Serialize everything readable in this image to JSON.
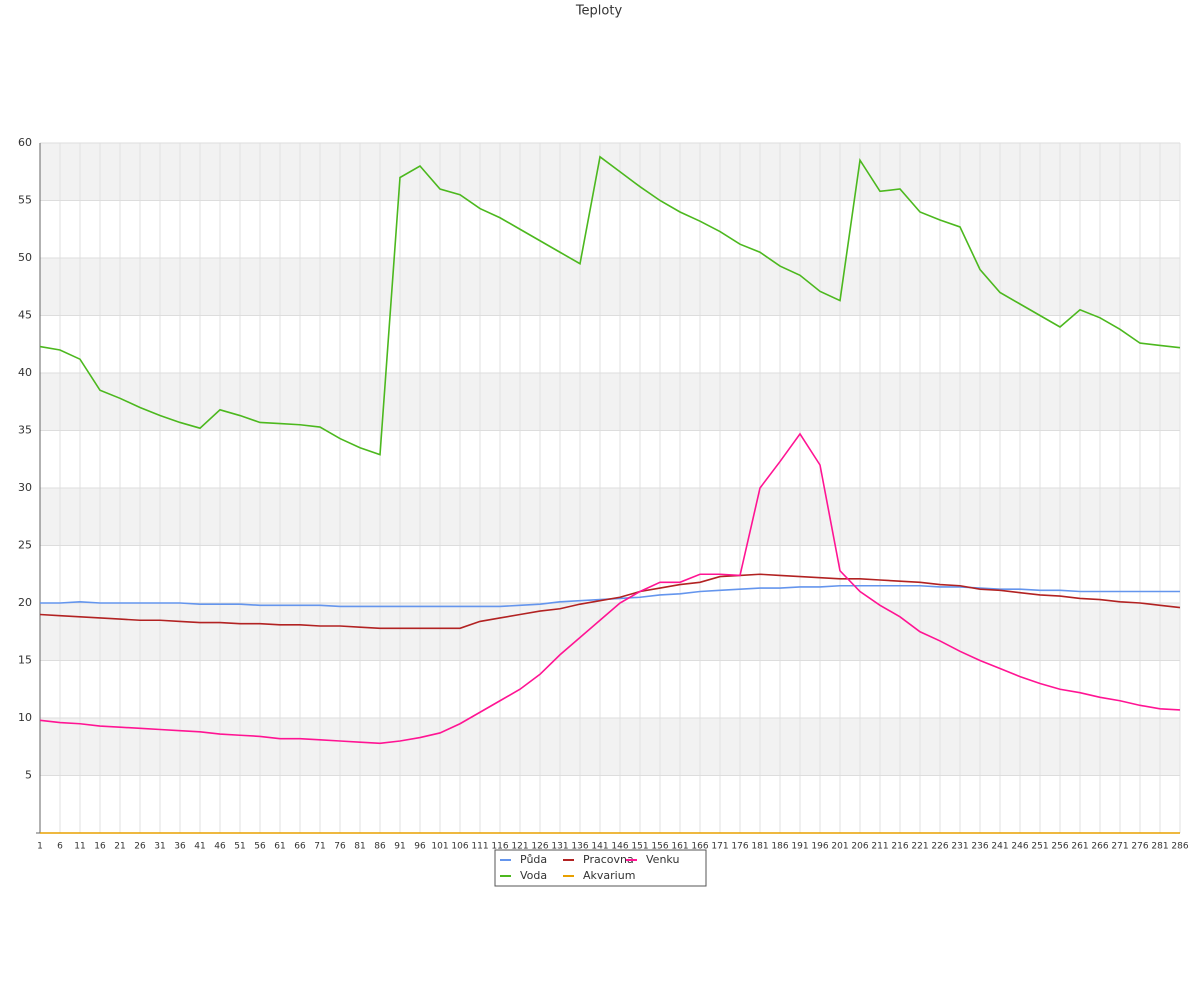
{
  "chart_data": {
    "type": "line",
    "title": "Teploty",
    "categories": [
      "1",
      "6",
      "11",
      "16",
      "21",
      "26",
      "31",
      "36",
      "41",
      "46",
      "51",
      "56",
      "61",
      "66",
      "71",
      "76",
      "81",
      "86",
      "91",
      "96",
      "101",
      "106",
      "111",
      "116",
      "121",
      "126",
      "131",
      "136",
      "141",
      "146",
      "151",
      "156",
      "161",
      "166",
      "171",
      "176",
      "181",
      "186",
      "191",
      "196",
      "201",
      "206",
      "211",
      "216",
      "221",
      "226",
      "231",
      "236",
      "241",
      "246",
      "251",
      "256",
      "261",
      "266",
      "271",
      "276",
      "281",
      "286"
    ],
    "series": [
      {
        "name": "Půda",
        "color": "#6495ed",
        "values": [
          20,
          20,
          20.1,
          20,
          20,
          20,
          20,
          20,
          19.9,
          19.9,
          19.9,
          19.8,
          19.8,
          19.8,
          19.8,
          19.7,
          19.7,
          19.7,
          19.7,
          19.7,
          19.7,
          19.7,
          19.7,
          19.7,
          19.8,
          19.9,
          20.1,
          20.2,
          20.3,
          20.4,
          20.5,
          20.7,
          20.8,
          21,
          21.1,
          21.2,
          21.3,
          21.3,
          21.4,
          21.4,
          21.5,
          21.5,
          21.5,
          21.5,
          21.5,
          21.4,
          21.4,
          21.3,
          21.2,
          21.2,
          21.1,
          21.1,
          21,
          21,
          21,
          21,
          21,
          21
        ]
      },
      {
        "name": "Pracovna",
        "color": "#b22222",
        "values": [
          19,
          18.9,
          18.8,
          18.7,
          18.6,
          18.5,
          18.5,
          18.4,
          18.3,
          18.3,
          18.2,
          18.2,
          18.1,
          18.1,
          18.0,
          18.0,
          17.9,
          17.8,
          17.8,
          17.8,
          17.8,
          17.8,
          18.4,
          18.7,
          19.0,
          19.3,
          19.5,
          19.9,
          20.2,
          20.5,
          21.0,
          21.3,
          21.6,
          21.8,
          22.3,
          22.4,
          22.5,
          22.4,
          22.3,
          22.2,
          22.1,
          22.1,
          22.0,
          21.9,
          21.8,
          21.6,
          21.5,
          21.2,
          21.1,
          20.9,
          20.7,
          20.6,
          20.4,
          20.3,
          20.1,
          20.0,
          19.8,
          19.6
        ]
      },
      {
        "name": "Venku",
        "color": "#ff1493",
        "values": [
          9.8,
          9.6,
          9.5,
          9.3,
          9.2,
          9.1,
          9.0,
          8.9,
          8.8,
          8.6,
          8.5,
          8.4,
          8.2,
          8.2,
          8.1,
          8.0,
          7.9,
          7.8,
          8.0,
          8.3,
          8.7,
          9.5,
          10.5,
          11.5,
          12.5,
          13.8,
          15.5,
          17,
          18.5,
          20,
          21,
          21.8,
          21.8,
          22.5,
          22.5,
          22.4,
          30,
          32.3,
          34.7,
          32,
          22.8,
          21,
          19.8,
          18.8,
          17.5,
          16.7,
          15.8,
          15,
          14.3,
          13.6,
          13,
          12.5,
          12.2,
          11.8,
          11.5,
          11.1,
          10.8,
          10.7
        ]
      },
      {
        "name": "Voda",
        "color": "#4cb81e",
        "values": [
          42.3,
          42,
          41.2,
          38.5,
          37.8,
          37,
          36.3,
          35.7,
          35.2,
          36.8,
          36.3,
          35.7,
          35.6,
          35.5,
          35.3,
          34.3,
          33.5,
          32.9,
          57,
          58,
          56,
          55.5,
          54.3,
          53.5,
          52.5,
          51.5,
          50.5,
          49.5,
          58.8,
          57.5,
          56.2,
          55,
          54,
          53.2,
          52.3,
          51.2,
          50.5,
          49.3,
          48.5,
          47.1,
          46.3,
          58.5,
          55.8,
          56,
          54,
          53.3,
          52.7,
          49,
          47,
          46,
          45,
          44,
          45.5,
          44.8,
          43.8,
          42.6,
          42.4,
          42.2
        ]
      },
      {
        "name": "Akvarium",
        "color": "#e8a000",
        "values": [
          0,
          0,
          0,
          0,
          0,
          0,
          0,
          0,
          0,
          0,
          0,
          0,
          0,
          0,
          0,
          0,
          0,
          0,
          0,
          0,
          0,
          0,
          0,
          0,
          0,
          0,
          0,
          0,
          0,
          0,
          0,
          0,
          0,
          0,
          0,
          0,
          0,
          0,
          0,
          0,
          0,
          0,
          0,
          0,
          0,
          0,
          0,
          0,
          0,
          0,
          0,
          0,
          0,
          0,
          0,
          0,
          0,
          0
        ]
      }
    ],
    "ylim": [
      0,
      60
    ],
    "yticks": [
      5,
      10,
      15,
      20,
      25,
      30,
      35,
      40,
      45,
      50,
      55,
      60
    ],
    "grid": true
  }
}
